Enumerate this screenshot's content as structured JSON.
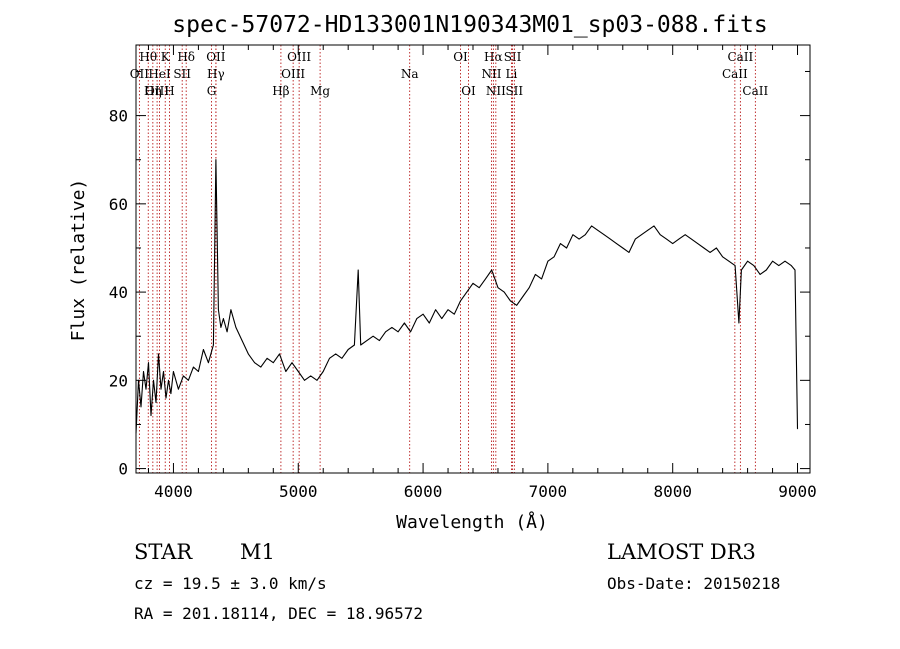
{
  "chart_data": {
    "type": "line",
    "title": "spec-57072-HD133001N190343M01_sp03-088.fits",
    "xlabel": "Wavelength (Å)",
    "ylabel": "Flux (relative)",
    "xlim": [
      3700,
      9100
    ],
    "ylim": [
      -1,
      96
    ],
    "xticks": [
      4000,
      5000,
      6000,
      7000,
      8000,
      9000
    ],
    "yticks": [
      0,
      20,
      40,
      60,
      80
    ],
    "grid": false,
    "series": [
      {
        "name": "flux",
        "x": [
          3700,
          3720,
          3740,
          3760,
          3780,
          3800,
          3820,
          3840,
          3860,
          3880,
          3900,
          3920,
          3940,
          3960,
          3980,
          4000,
          4040,
          4080,
          4120,
          4160,
          4200,
          4240,
          4280,
          4320,
          4340,
          4360,
          4380,
          4400,
          4430,
          4460,
          4500,
          4550,
          4600,
          4650,
          4700,
          4750,
          4800,
          4850,
          4900,
          4950,
          5000,
          5050,
          5100,
          5150,
          5200,
          5250,
          5300,
          5350,
          5400,
          5450,
          5480,
          5500,
          5550,
          5600,
          5650,
          5700,
          5750,
          5800,
          5850,
          5900,
          5950,
          6000,
          6050,
          6100,
          6150,
          6200,
          6250,
          6300,
          6350,
          6400,
          6450,
          6500,
          6550,
          6600,
          6650,
          6700,
          6750,
          6800,
          6850,
          6900,
          6950,
          7000,
          7050,
          7100,
          7150,
          7200,
          7250,
          7300,
          7350,
          7400,
          7450,
          7500,
          7550,
          7600,
          7650,
          7700,
          7750,
          7800,
          7850,
          7900,
          7950,
          8000,
          8050,
          8100,
          8150,
          8200,
          8250,
          8300,
          8350,
          8400,
          8450,
          8500,
          8530,
          8550,
          8600,
          8650,
          8700,
          8750,
          8800,
          8850,
          8900,
          8950,
          8980,
          9000
        ],
        "y": [
          8,
          20,
          14,
          22,
          18,
          24,
          12,
          20,
          15,
          26,
          18,
          22,
          16,
          20,
          17,
          22,
          18,
          21,
          20,
          23,
          22,
          27,
          24,
          28,
          70,
          36,
          32,
          34,
          31,
          36,
          32,
          29,
          26,
          24,
          23,
          25,
          24,
          26,
          22,
          24,
          22,
          20,
          21,
          20,
          22,
          25,
          26,
          25,
          27,
          28,
          45,
          28,
          29,
          30,
          29,
          31,
          32,
          31,
          33,
          31,
          34,
          35,
          33,
          36,
          34,
          36,
          35,
          38,
          40,
          42,
          41,
          43,
          45,
          41,
          40,
          38,
          37,
          39,
          41,
          44,
          43,
          47,
          48,
          51,
          50,
          53,
          52,
          53,
          55,
          54,
          53,
          52,
          51,
          50,
          49,
          52,
          53,
          54,
          55,
          53,
          52,
          51,
          52,
          53,
          52,
          51,
          50,
          49,
          50,
          48,
          47,
          46,
          33,
          45,
          47,
          46,
          44,
          45,
          47,
          46,
          47,
          46,
          45,
          9
        ]
      }
    ],
    "line_markers": [
      {
        "label": "Hθ",
        "wl": 3798,
        "row": 0
      },
      {
        "label": "OII",
        "wl": 3727,
        "row": 1
      },
      {
        "label": "OIII",
        "wl": 3869,
        "row": 2
      },
      {
        "label": "HeI",
        "wl": 3889,
        "row": 1
      },
      {
        "label": "Hη",
        "wl": 3835,
        "row": 2
      },
      {
        "label": "K",
        "wl": 3934,
        "row": 0
      },
      {
        "label": "SII",
        "wl": 4070,
        "row": 1
      },
      {
        "label": "H",
        "wl": 3968,
        "row": 2
      },
      {
        "label": "Hδ",
        "wl": 4102,
        "row": 0
      },
      {
        "label": "OII",
        "wl": 4340,
        "row": 0
      },
      {
        "label": "Hγ",
        "wl": 4340,
        "row": 1
      },
      {
        "label": "G",
        "wl": 4305,
        "row": 2
      },
      {
        "label": "OIII",
        "wl": 5007,
        "row": 0
      },
      {
        "label": "OIII",
        "wl": 4959,
        "row": 1
      },
      {
        "label": "Hβ",
        "wl": 4861,
        "row": 2
      },
      {
        "label": "Mg",
        "wl": 5175,
        "row": 2
      },
      {
        "label": "Na",
        "wl": 5893,
        "row": 1
      },
      {
        "label": "OI",
        "wl": 6300,
        "row": 0
      },
      {
        "label": "OI",
        "wl": 6364,
        "row": 2
      },
      {
        "label": "Hα",
        "wl": 6563,
        "row": 0
      },
      {
        "label": "NII",
        "wl": 6548,
        "row": 1
      },
      {
        "label": "NII",
        "wl": 6583,
        "row": 2
      },
      {
        "label": "SII",
        "wl": 6717,
        "row": 0
      },
      {
        "label": "Li",
        "wl": 6708,
        "row": 1
      },
      {
        "label": "SII",
        "wl": 6731,
        "row": 2
      },
      {
        "label": "CaII",
        "wl": 8542,
        "row": 0
      },
      {
        "label": "CaII",
        "wl": 8498,
        "row": 1
      },
      {
        "label": "CaII",
        "wl": 8662,
        "row": 2
      }
    ]
  },
  "info": {
    "object_type": "STAR",
    "subclass": "M1",
    "survey": "LAMOST DR3",
    "redshift": "cz = 19.5 ± 3.0 km/s",
    "obs_date": "Obs-Date: 20150218",
    "coords": "RA = 201.18114, DEC =  18.96572"
  },
  "colors": {
    "spectrum": "#000000",
    "marker_line": "#b00000",
    "text": "#000000"
  }
}
